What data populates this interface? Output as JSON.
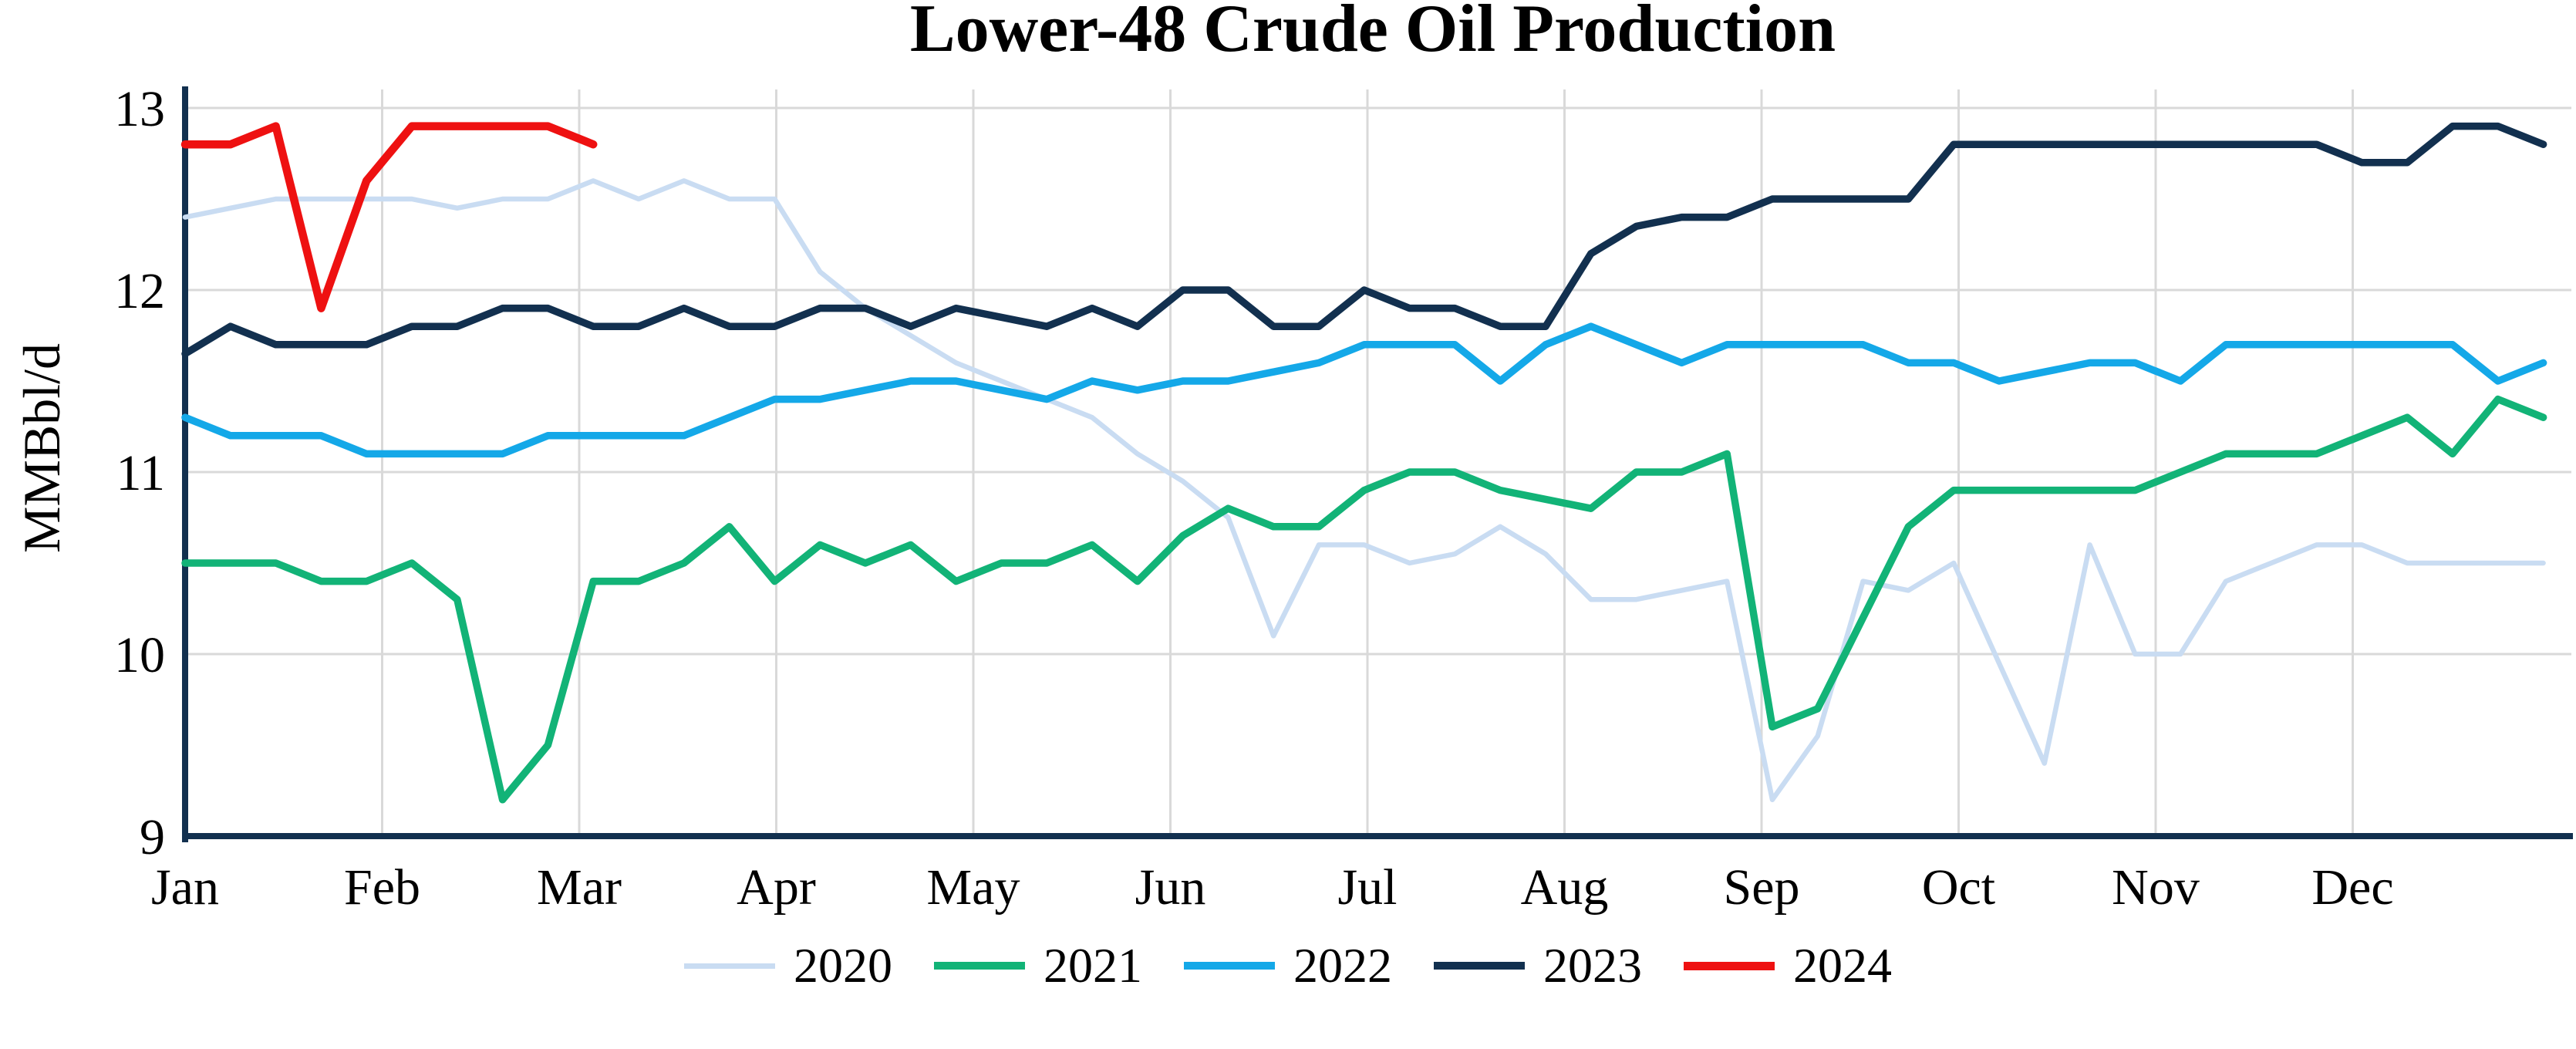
{
  "title": "Lower-48 Crude Oil Production",
  "y_axis": {
    "label": "MMBbl/d",
    "ticks": [
      13,
      12,
      11,
      10,
      9
    ]
  },
  "x_axis": {
    "months": [
      "Jan",
      "Feb",
      "Mar",
      "Apr",
      "May",
      "Jun",
      "Jul",
      "Aug",
      "Sep",
      "Oct",
      "Nov",
      "Dec"
    ]
  },
  "legend": {
    "items": [
      "2020",
      "2021",
      "2022",
      "2023",
      "2024"
    ]
  },
  "colors": {
    "background": "#ffffff",
    "grid": "#d9d9d9",
    "axis_spine": "#12304f",
    "text": "#000000",
    "series_2020": "#c9dcf2",
    "series_2021": "#12b377",
    "series_2022": "#14a8e8",
    "series_2023": "#12304f",
    "series_2024": "#ee1111"
  },
  "chart_data": {
    "type": "line",
    "title": "Lower-48 Crude Oil Production",
    "xlabel": "",
    "ylabel": "MMBbl/d",
    "x_unit": "weekly data, Jan through Dec",
    "ylim": [
      9,
      13.1
    ],
    "y_ticks": [
      9,
      10,
      11,
      12,
      13
    ],
    "x_tick_labels": [
      "Jan",
      "Feb",
      "Mar",
      "Apr",
      "May",
      "Jun",
      "Jul",
      "Aug",
      "Sep",
      "Oct",
      "Nov",
      "Dec"
    ],
    "grid": true,
    "legend_position": "bottom-center",
    "series": [
      {
        "name": "2020",
        "color": "#c9dcf2",
        "line_width": 6.5,
        "values": [
          12.4,
          12.45,
          12.5,
          12.5,
          12.5,
          12.5,
          12.45,
          12.5,
          12.5,
          12.6,
          12.5,
          12.6,
          12.5,
          12.5,
          12.1,
          11.9,
          11.75,
          11.6,
          11.5,
          11.4,
          11.3,
          11.1,
          10.95,
          10.75,
          10.1,
          10.6,
          10.6,
          10.5,
          10.55,
          10.7,
          10.55,
          10.3,
          10.3,
          10.35,
          10.4,
          9.2,
          9.55,
          10.4,
          10.35,
          10.5,
          9.95,
          9.4,
          10.6,
          10.0,
          10.0,
          10.4,
          10.5,
          10.6,
          10.6,
          10.5,
          10.5,
          10.5,
          10.5
        ]
      },
      {
        "name": "2021",
        "color": "#12b377",
        "line_width": 9.5,
        "values": [
          10.5,
          10.5,
          10.5,
          10.4,
          10.4,
          10.5,
          10.3,
          9.2,
          9.5,
          10.4,
          10.4,
          10.5,
          10.7,
          10.4,
          10.6,
          10.5,
          10.6,
          10.4,
          10.5,
          10.5,
          10.6,
          10.4,
          10.65,
          10.8,
          10.7,
          10.7,
          10.9,
          11.0,
          11.0,
          10.9,
          10.85,
          10.8,
          11.0,
          11.0,
          11.1,
          9.6,
          9.7,
          10.2,
          10.7,
          10.9,
          10.9,
          10.9,
          10.9,
          10.9,
          11.0,
          11.1,
          11.1,
          11.1,
          11.2,
          11.3,
          11.1,
          11.4,
          11.3
        ]
      },
      {
        "name": "2022",
        "color": "#14a8e8",
        "line_width": 9.5,
        "values": [
          11.3,
          11.2,
          11.2,
          11.2,
          11.1,
          11.1,
          11.1,
          11.1,
          11.2,
          11.2,
          11.2,
          11.2,
          11.3,
          11.4,
          11.4,
          11.45,
          11.5,
          11.5,
          11.45,
          11.4,
          11.5,
          11.45,
          11.5,
          11.5,
          11.55,
          11.6,
          11.7,
          11.7,
          11.7,
          11.5,
          11.7,
          11.8,
          11.7,
          11.6,
          11.7,
          11.7,
          11.7,
          11.7,
          11.6,
          11.6,
          11.5,
          11.55,
          11.6,
          11.6,
          11.5,
          11.7,
          11.7,
          11.7,
          11.7,
          11.7,
          11.7,
          11.5,
          11.6
        ]
      },
      {
        "name": "2023",
        "color": "#12304f",
        "line_width": 9.5,
        "values": [
          11.65,
          11.8,
          11.7,
          11.7,
          11.7,
          11.8,
          11.8,
          11.9,
          11.9,
          11.8,
          11.8,
          11.9,
          11.8,
          11.8,
          11.9,
          11.9,
          11.8,
          11.9,
          11.85,
          11.8,
          11.9,
          11.8,
          12.0,
          12.0,
          11.8,
          11.8,
          12.0,
          11.9,
          11.9,
          11.8,
          11.8,
          12.2,
          12.35,
          12.4,
          12.4,
          12.5,
          12.5,
          12.5,
          12.5,
          12.8,
          12.8,
          12.8,
          12.8,
          12.8,
          12.8,
          12.8,
          12.8,
          12.8,
          12.7,
          12.7,
          12.9,
          12.9,
          12.8
        ]
      },
      {
        "name": "2024",
        "color": "#ee1111",
        "line_width": 10.5,
        "values": [
          12.8,
          12.8,
          12.9,
          11.9,
          12.6,
          12.9,
          12.9,
          12.9,
          12.9,
          12.8
        ]
      }
    ]
  }
}
